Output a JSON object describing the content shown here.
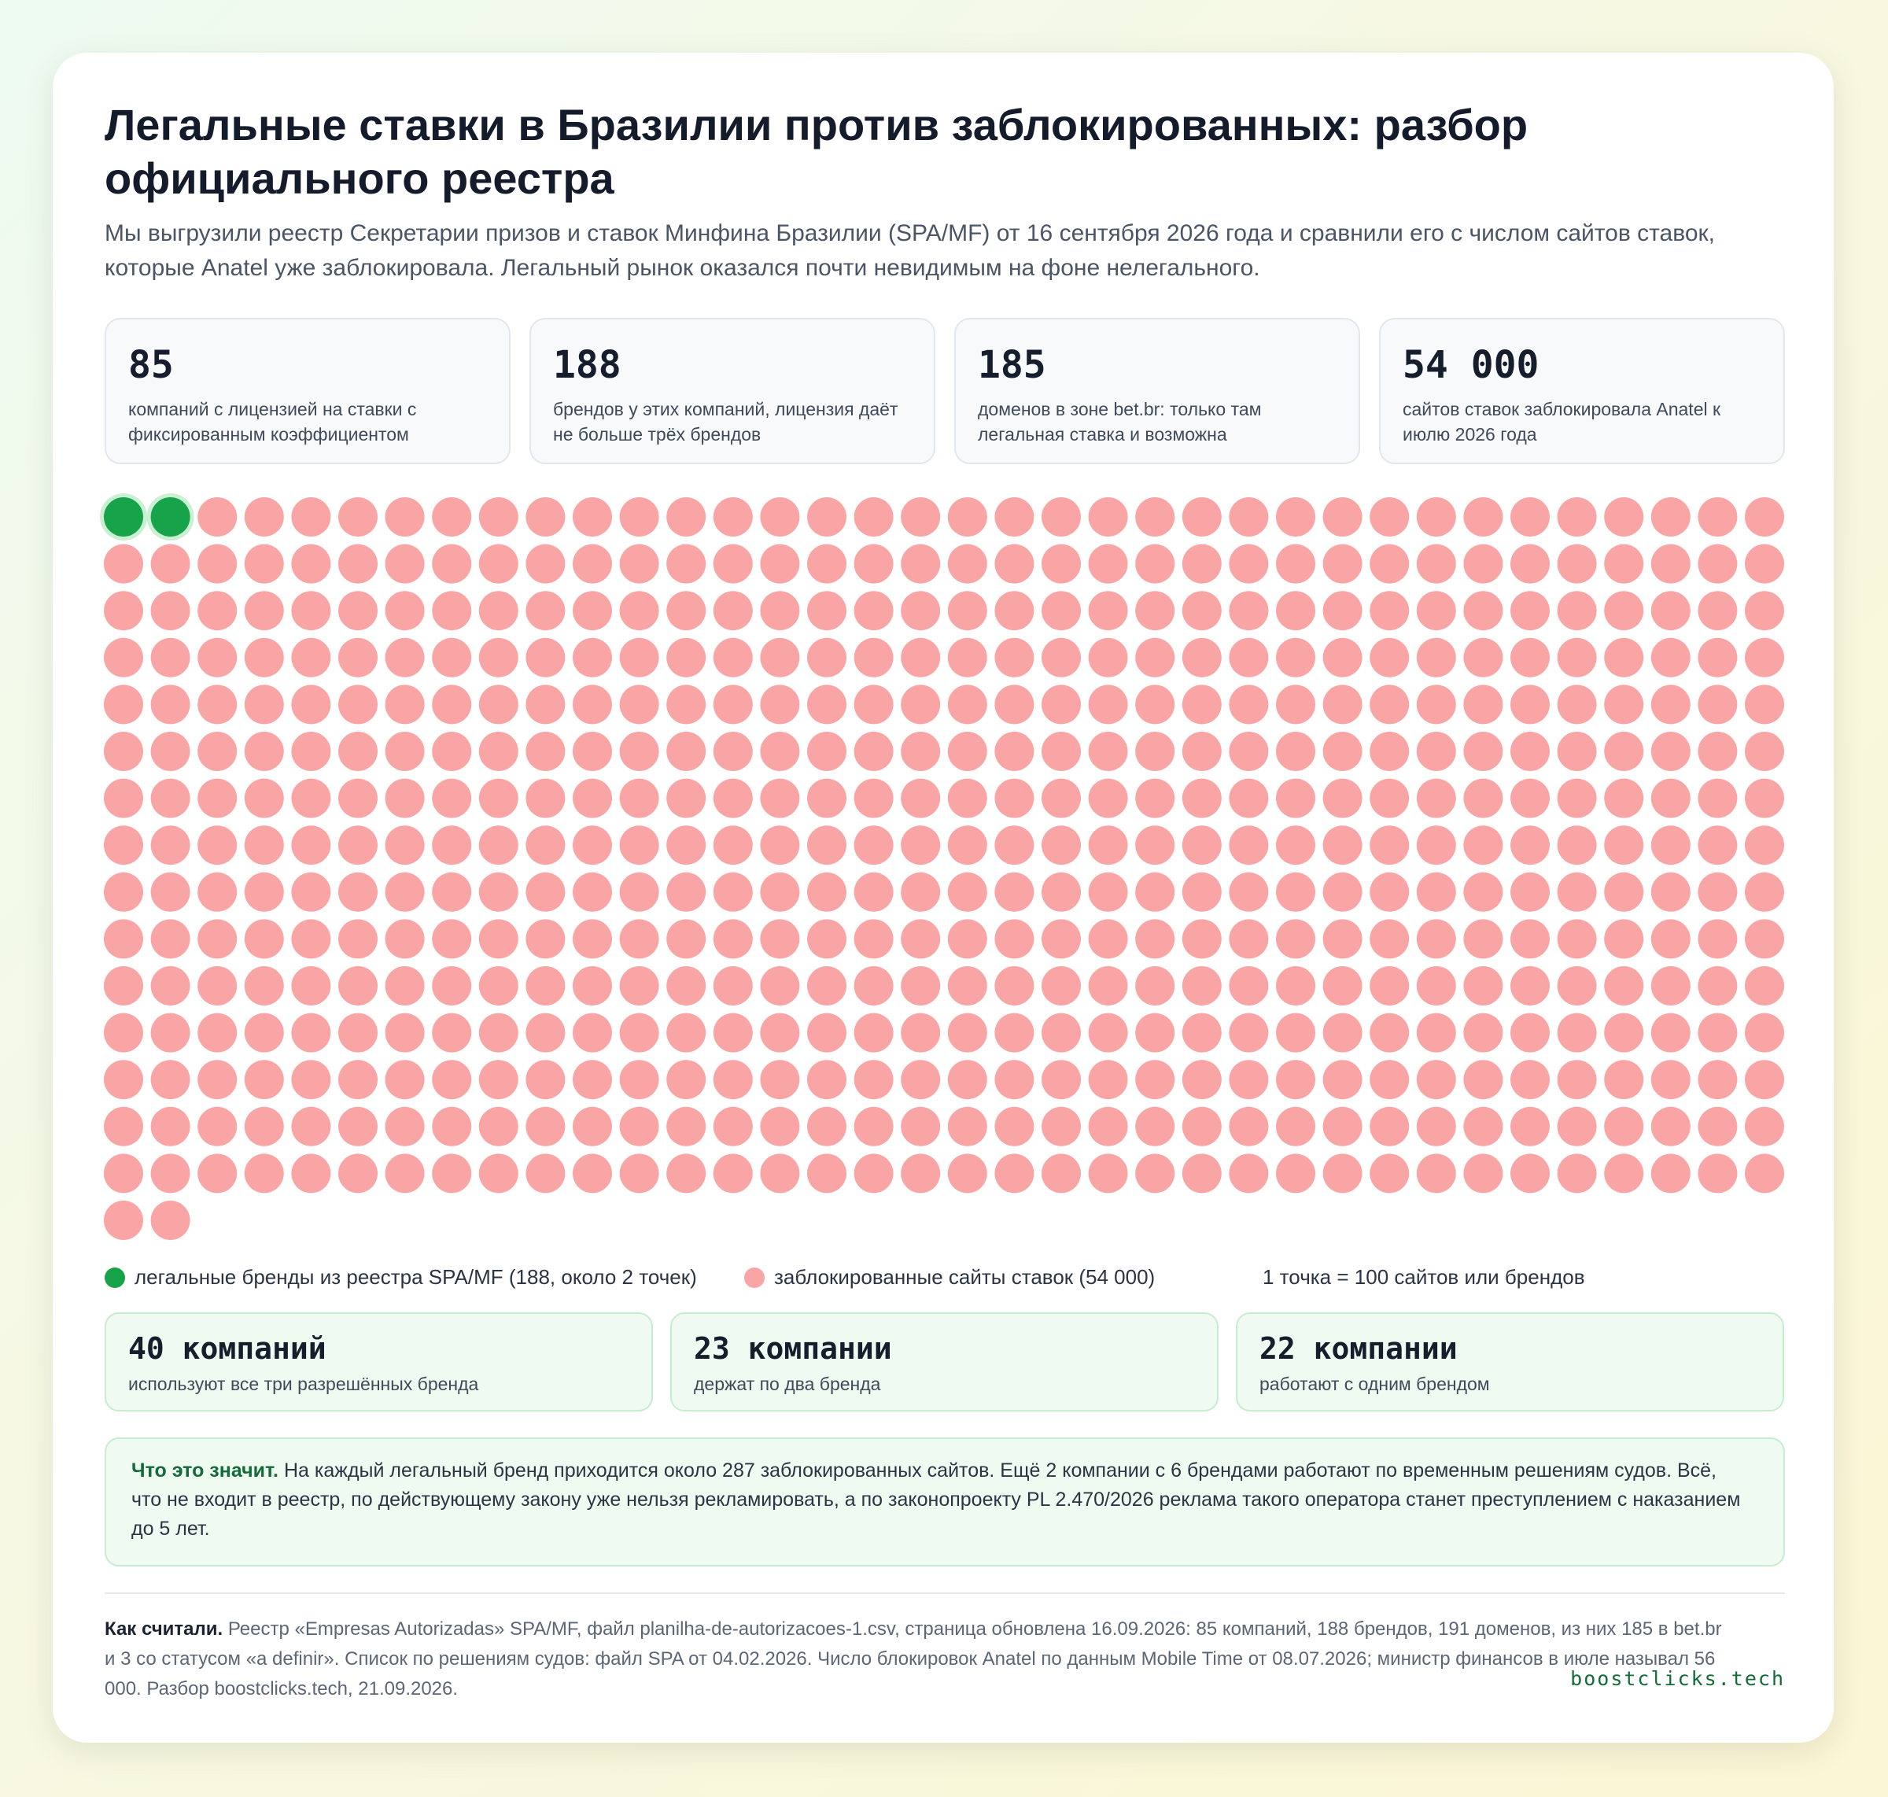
{
  "title": "Легальные ставки в Бразилии против заблокированных: разбор официального реестра",
  "subtitle": "Мы выгрузили реестр Секретарии призов и ставок Минфина Бразилии (SPA/MF) от 16 сентября 2026 года и сравнили его с числом сайтов ставок, которые Anatel уже заблокировала. Легальный рынок оказался почти невидимым на фоне нелегального.",
  "stats": [
    {
      "value": "85",
      "label": "компаний с лицензией на ставки с фиксированным коэффициентом"
    },
    {
      "value": "188",
      "label": "брендов у этих компаний, лицензия даёт не больше трёх брендов"
    },
    {
      "value": "185",
      "label": "доменов в зоне bet.br: только там легальная ставка и возможна"
    },
    {
      "value": "54 000",
      "label": "сайтов ставок заблокировала Anatel к июлю 2026 года"
    }
  ],
  "chart_data": {
    "type": "waffle",
    "unit": "1 точка = 100 сайтов или брендов",
    "columns": 36,
    "series": [
      {
        "name": "легальные бренды из реестра SPA/MF (188, около 2 точек)",
        "dots": 2,
        "value": 188,
        "color": "#16a34a"
      },
      {
        "name": "заблокированные сайты ставок (54 000)",
        "dots": 540,
        "value": 54000,
        "color": "#f9a5a5"
      }
    ]
  },
  "legend": {
    "legal": "легальные бренды из реестра SPA/MF (188, около 2 точек)",
    "blocked": "заблокированные сайты ставок (54 000)",
    "unit": "1 точка = 100 сайтов или брендов"
  },
  "groups": [
    {
      "value": "40 компаний",
      "label": "используют все три разрешённых бренда"
    },
    {
      "value": "23 компании",
      "label": "держат по два бренда"
    },
    {
      "value": "22 компании",
      "label": "работают с одним брендом"
    }
  ],
  "note": {
    "lead": "Что это значит.",
    "text": " На каждый легальный бренд приходится около 287 заблокированных сайтов. Ещё 2 компании с 6 брендами работают по временным решениям судов. Всё, что не входит в реестр, по действующему закону уже нельзя рекламировать, а по законопроекту PL 2.470/2026 реклама такого оператора станет преступлением с наказанием до 5 лет."
  },
  "method": {
    "lead": "Как считали.",
    "text": " Реестр «Empresas Autorizadas» SPA/MF, файл planilha-de-autorizacoes-1.csv, страница обновлена 16.09.2026: 85 компаний, 188 брендов, 191 доменов, из них 185 в bet.br и 3 со статусом «a definir». Список по решениям судов: файл SPA от 04.02.2026. Число блокировок Anatel по данным Mobile Time от 08.07.2026; министр финансов в июле называл 56 000. Разбор boostclicks.tech, 21.09.2026."
  },
  "brand": "boostclicks.tech",
  "colors": {
    "legal": "#16a34a",
    "blocked": "#f9a5a5",
    "accent": "#146b3a"
  }
}
